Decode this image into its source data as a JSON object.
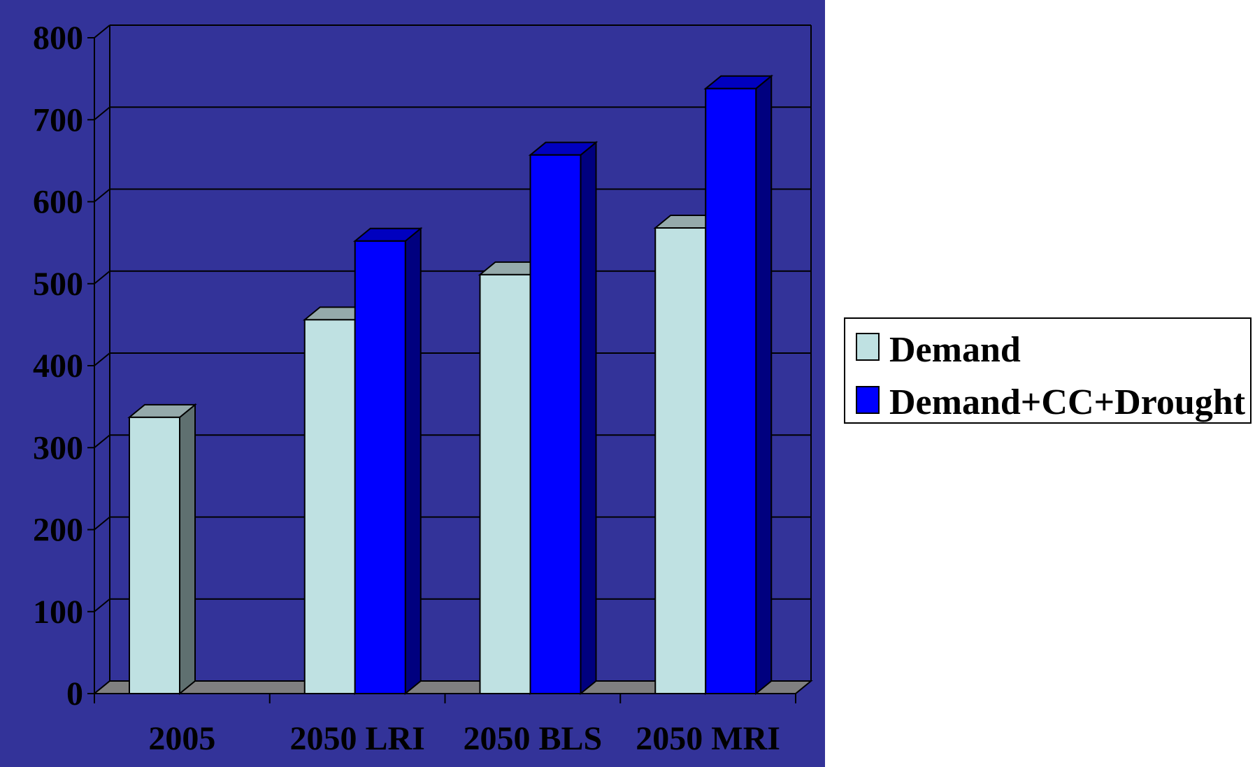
{
  "chart_data": {
    "type": "bar",
    "categories": [
      "2005",
      "2050 LRI",
      "2050 BLS",
      "2050 MRI"
    ],
    "series": [
      {
        "name": "Demand",
        "values": [
          337,
          456,
          511,
          568
        ]
      },
      {
        "name": "Demand+CC+Drought",
        "values": [
          null,
          552,
          657,
          738
        ]
      }
    ],
    "y_ticks": [
      "0",
      "100",
      "200",
      "300",
      "400",
      "500",
      "600",
      "700",
      "800"
    ],
    "ylim": [
      0,
      800
    ],
    "grid": true,
    "legend_position": "right",
    "style": "3d-column",
    "colors": {
      "plot_background": "#333399",
      "demand_front": "#bfe1e2",
      "demand_side": "#5f7070",
      "demand_top": "#95aaab",
      "drought_front": "#0000ff",
      "drought_side": "#00007f",
      "drought_top": "#0000bf",
      "floor": "#808080"
    }
  },
  "legend": {
    "items": [
      {
        "label": "Demand",
        "color": "#bfe1e2"
      },
      {
        "label": "Demand+CC+Drought",
        "color": "#0000ff"
      }
    ]
  }
}
